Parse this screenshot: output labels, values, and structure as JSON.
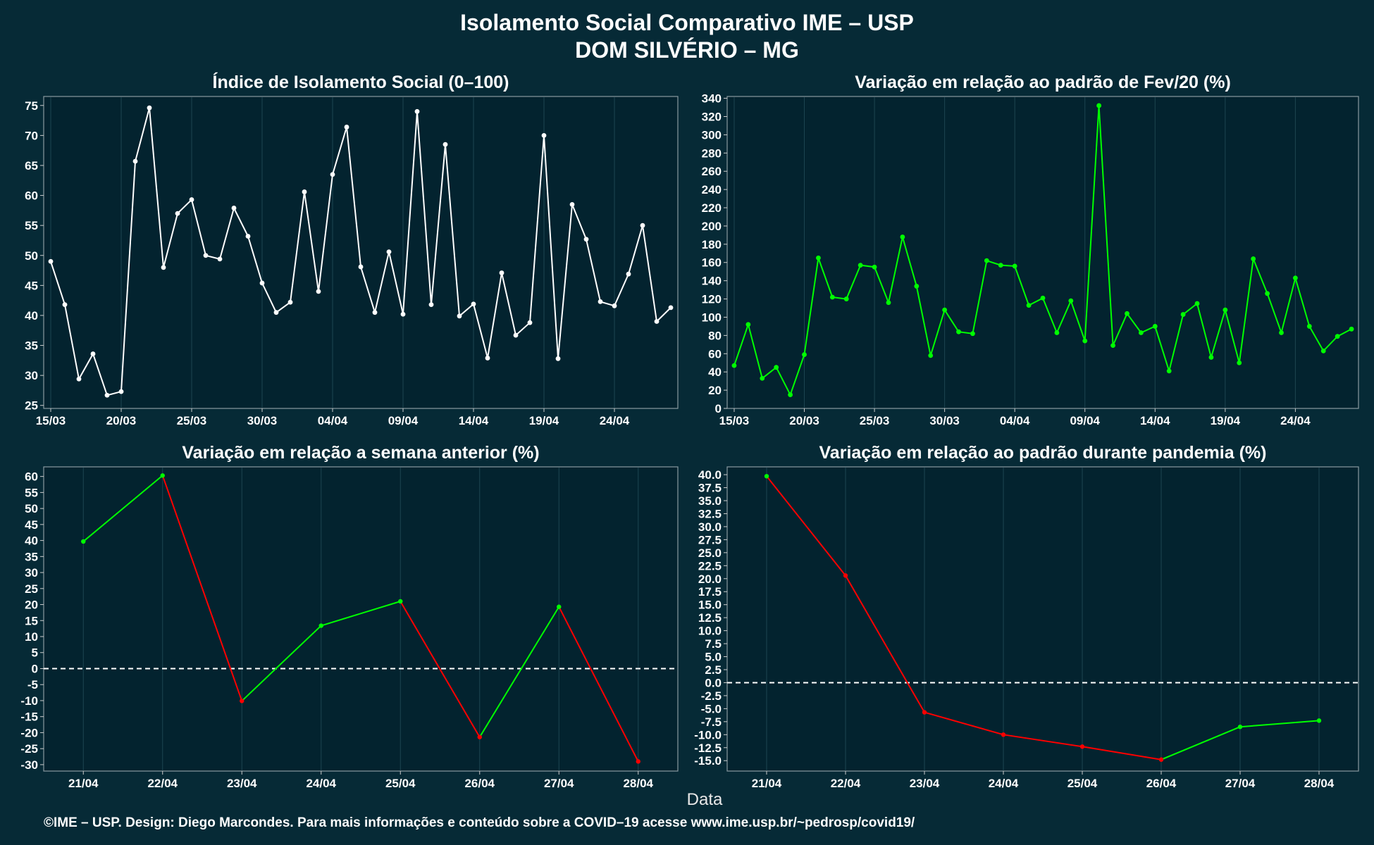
{
  "header": {
    "title_line1": "Isolamento Social Comparativo IME – USP",
    "title_line2": "DOM SILVÉRIO – MG"
  },
  "x_axis_label": "Data",
  "footer": "©IME – USP. Design: Diego Marcondes. Para mais informações e conteúdo sobre a COVID–19 acesse www.ime.usp.br/~pedrosp/covid19/",
  "colors": {
    "background": "#062a36",
    "panel": "#03232f",
    "white_series": "#ffffff",
    "green_series": "#00ff00",
    "red_series": "#ff0000"
  },
  "chart_data": [
    {
      "id": "isolation-index",
      "type": "line",
      "title": "Índice de Isolamento Social (0–100)",
      "x_start": "15/03",
      "x_tick_labels": [
        "15/03",
        "20/03",
        "25/03",
        "30/03",
        "04/04",
        "09/04",
        "14/04",
        "19/04",
        "24/04"
      ],
      "x_tick_index": [
        0,
        5,
        10,
        15,
        20,
        25,
        30,
        35,
        40
      ],
      "ylim": [
        24.5,
        76.5
      ],
      "y_ticks": [
        25,
        30,
        35,
        40,
        45,
        50,
        55,
        60,
        65,
        70,
        75
      ],
      "values": [
        49.0,
        41.8,
        29.4,
        33.6,
        26.7,
        27.3,
        65.7,
        74.6,
        48.0,
        57.0,
        59.3,
        50.0,
        49.4,
        57.9,
        53.2,
        45.4,
        40.5,
        42.2,
        60.6,
        44.0,
        63.5,
        71.4,
        48.1,
        40.5,
        50.6,
        40.2,
        74.0,
        41.8,
        68.5,
        39.9,
        41.9,
        32.9,
        47.1,
        36.7,
        38.8,
        70.0,
        32.8,
        58.5,
        52.7,
        42.3,
        41.6,
        46.9,
        55.0,
        39.0,
        41.3
      ],
      "color": "#ffffff"
    },
    {
      "id": "variation-feb",
      "type": "line",
      "title": "Variação em relação ao padrão de Fev/20 (%)",
      "x_start": "15/03",
      "x_tick_labels": [
        "15/03",
        "20/03",
        "25/03",
        "30/03",
        "04/04",
        "09/04",
        "14/04",
        "19/04",
        "24/04"
      ],
      "x_tick_index": [
        0,
        5,
        10,
        15,
        20,
        25,
        30,
        35,
        40
      ],
      "ylim": [
        0,
        342
      ],
      "y_ticks": [
        0,
        20,
        40,
        60,
        80,
        100,
        120,
        140,
        160,
        180,
        200,
        220,
        240,
        260,
        280,
        300,
        320,
        340
      ],
      "values": [
        47,
        92,
        33,
        45,
        15,
        59,
        165,
        122,
        120,
        157,
        155,
        116,
        188,
        134,
        58,
        108,
        84,
        82,
        162,
        157,
        156,
        113,
        121,
        83,
        118,
        74,
        332,
        69,
        104,
        83,
        90,
        41,
        103,
        115,
        56,
        108,
        50,
        164,
        126,
        83,
        143,
        90,
        63,
        79,
        87
      ],
      "color": "#00ff00"
    },
    {
      "id": "variation-week",
      "type": "line",
      "title": "Variação em relação a semana anterior (%)",
      "categories": [
        "21/04",
        "22/04",
        "23/04",
        "24/04",
        "25/04",
        "26/04",
        "27/04",
        "28/04"
      ],
      "ylim": [
        -32,
        63
      ],
      "y_ticks": [
        -30,
        -25,
        -20,
        -15,
        -10,
        -5,
        0,
        5,
        10,
        15,
        20,
        25,
        30,
        35,
        40,
        45,
        50,
        55,
        60
      ],
      "values": [
        39.7,
        60.3,
        -10.1,
        13.4,
        21.0,
        -21.4,
        19.3,
        -29.0
      ],
      "reference_line": 0,
      "positive_segment_color": "#00ff00",
      "negative_segment_color": "#ff0000"
    },
    {
      "id": "variation-pandemic",
      "type": "line",
      "title": "Variação em relação ao padrão durante pandemia (%)",
      "categories": [
        "21/04",
        "22/04",
        "23/04",
        "24/04",
        "25/04",
        "26/04",
        "27/04",
        "28/04"
      ],
      "ylim": [
        -17.0,
        41.5
      ],
      "y_ticks": [
        -15.0,
        -12.5,
        -10.0,
        -7.5,
        -5.0,
        -2.5,
        0.0,
        2.5,
        5.0,
        7.5,
        10.0,
        12.5,
        15.0,
        17.5,
        20.0,
        22.5,
        25.0,
        27.5,
        30.0,
        32.5,
        35.0,
        37.5,
        40.0
      ],
      "values": [
        39.7,
        20.6,
        -5.7,
        -10.0,
        -12.3,
        -14.8,
        -8.5,
        -7.3
      ],
      "reference_line": 0,
      "positive_segment_color": "#00ff00",
      "negative_segment_color": "#ff0000"
    }
  ]
}
